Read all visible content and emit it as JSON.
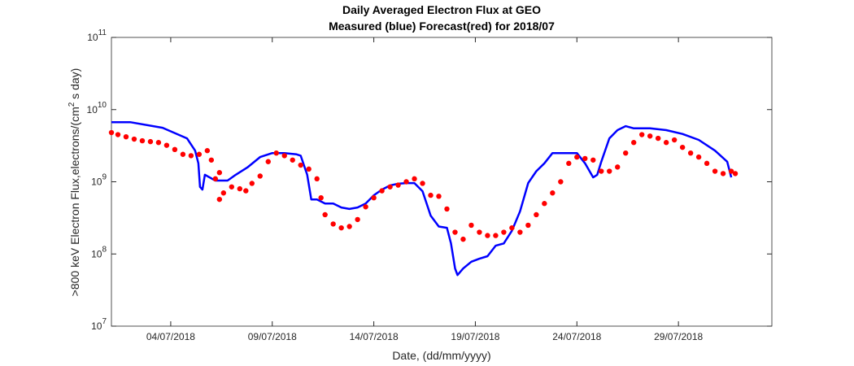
{
  "chart_data": {
    "type": "line",
    "title": "Daily Averaged Electron Flux at GEO",
    "subtitle": "Measured (blue) Forecast(red) for 2018/07",
    "xlabel": "Date, (dd/mm/yyyy)",
    "ylabel": [
      ">800 keV Electron Flux,electrons/(cm",
      "2",
      " s day)"
    ],
    "log_y": true,
    "xlim": [
      1.08,
      33.6
    ],
    "ylim": [
      10000000,
      100000000000
    ],
    "xticks": [
      {
        "value": 4,
        "label": "04/07/2018"
      },
      {
        "value": 9,
        "label": "09/07/2018"
      },
      {
        "value": 14,
        "label": "14/07/2018"
      },
      {
        "value": 19,
        "label": "19/07/2018"
      },
      {
        "value": 24,
        "label": "24/07/2018"
      },
      {
        "value": 29,
        "label": "29/07/2018"
      }
    ],
    "yticks": [
      {
        "value": 10000000,
        "label": "10",
        "exponent": "7"
      },
      {
        "value": 100000000,
        "label": "10",
        "exponent": "8"
      },
      {
        "value": 1000000000,
        "label": "10",
        "exponent": "9"
      },
      {
        "value": 10000000000,
        "label": "10",
        "exponent": "10"
      },
      {
        "value": 100000000000,
        "label": "10",
        "exponent": "11"
      }
    ],
    "series": [
      {
        "name": "Measured",
        "color": "#0000ff",
        "mode": "line",
        "x": [
          1.08,
          2.0,
          3.6,
          4.8,
          5.2,
          5.36,
          5.44,
          5.56,
          5.68,
          6.2,
          6.8,
          7.2,
          7.8,
          8.4,
          9.0,
          9.6,
          10.2,
          10.4,
          10.72,
          10.92,
          11.2,
          11.6,
          12.0,
          12.4,
          12.8,
          13.2,
          13.6,
          14.0,
          14.4,
          14.8,
          15.2,
          15.6,
          16.0,
          16.4,
          16.8,
          17.2,
          17.6,
          17.8,
          18.0,
          18.12,
          18.4,
          18.8,
          19.2,
          19.6,
          20.0,
          20.4,
          20.8,
          21.2,
          21.6,
          22.0,
          22.4,
          22.8,
          23.2,
          23.6,
          24.0,
          24.4,
          24.8,
          25.0,
          25.2,
          25.6,
          26.0,
          26.4,
          26.8,
          27.2,
          27.6,
          28.4,
          29.2,
          30.0,
          30.8,
          31.4,
          31.6
        ],
        "values": [
          6700000000,
          6700000000,
          5600000000,
          4000000000,
          2700000000,
          1800000000,
          850000000,
          780000000,
          1250000000,
          1040000000,
          1040000000,
          1250000000,
          1600000000,
          2200000000,
          2500000000,
          2500000000,
          2400000000,
          2300000000,
          1250000000,
          570000000,
          570000000,
          500000000,
          500000000,
          440000000,
          420000000,
          440000000,
          500000000,
          650000000,
          780000000,
          890000000,
          940000000,
          960000000,
          960000000,
          740000000,
          340000000,
          240000000,
          230000000,
          140000000,
          63000000,
          51000000,
          63000000,
          78000000,
          86000000,
          93000000,
          130000000,
          140000000,
          210000000,
          390000000,
          960000000,
          1400000000,
          1800000000,
          2500000000,
          2500000000,
          2500000000,
          2500000000,
          1800000000,
          1150000000,
          1250000000,
          1900000000,
          4000000000,
          5200000000,
          5900000000,
          5500000000,
          5500000000,
          5500000000,
          5200000000,
          4600000000,
          3800000000,
          2700000000,
          1900000000,
          1150000000
        ]
      },
      {
        "name": "Forecast",
        "color": "#ff0000",
        "mode": "markers",
        "x": [
          1.08,
          1.4,
          1.8,
          2.2,
          2.6,
          3.0,
          3.4,
          3.8,
          4.2,
          4.6,
          5.0,
          5.4,
          5.8,
          6.0,
          6.2,
          6.4,
          6.4,
          6.6,
          7.0,
          7.4,
          7.7,
          8.0,
          8.4,
          8.8,
          9.2,
          9.6,
          10.0,
          10.4,
          10.8,
          11.2,
          11.4,
          11.6,
          12.0,
          12.4,
          12.8,
          13.2,
          13.6,
          14.0,
          14.4,
          14.8,
          15.2,
          15.6,
          16.0,
          16.4,
          16.8,
          17.2,
          17.6,
          18.0,
          18.4,
          18.8,
          19.2,
          19.6,
          20.0,
          20.4,
          20.8,
          21.2,
          21.6,
          22.0,
          22.4,
          22.8,
          23.2,
          23.6,
          24.0,
          24.4,
          24.8,
          25.2,
          25.6,
          26.0,
          26.4,
          26.8,
          27.2,
          27.6,
          28.0,
          28.4,
          28.8,
          29.2,
          29.6,
          30.0,
          30.4,
          30.8,
          31.2,
          31.6,
          31.8
        ],
        "values": [
          4800000000,
          4500000000,
          4200000000,
          3900000000,
          3700000000,
          3600000000,
          3500000000,
          3200000000,
          2800000000,
          2400000000,
          2300000000,
          2400000000,
          2700000000,
          2000000000,
          1100000000,
          1340000000,
          570000000,
          700000000,
          850000000,
          800000000,
          750000000,
          950000000,
          1200000000,
          1900000000,
          2500000000,
          2300000000,
          2000000000,
          1700000000,
          1500000000,
          1100000000,
          600000000,
          350000000,
          260000000,
          230000000,
          240000000,
          300000000,
          450000000,
          600000000,
          750000000,
          850000000,
          900000000,
          1000000000,
          1100000000,
          950000000,
          650000000,
          630000000,
          420000000,
          200000000,
          160000000,
          250000000,
          200000000,
          180000000,
          180000000,
          200000000,
          230000000,
          200000000,
          250000000,
          350000000,
          500000000,
          700000000,
          1000000000,
          1800000000,
          2200000000,
          2100000000,
          2000000000,
          1400000000,
          1400000000,
          1600000000,
          2500000000,
          3500000000,
          4500000000,
          4300000000,
          4000000000,
          3500000000,
          3800000000,
          3000000000,
          2500000000,
          2200000000,
          1800000000,
          1400000000,
          1300000000,
          1400000000,
          1300000000
        ]
      }
    ]
  }
}
